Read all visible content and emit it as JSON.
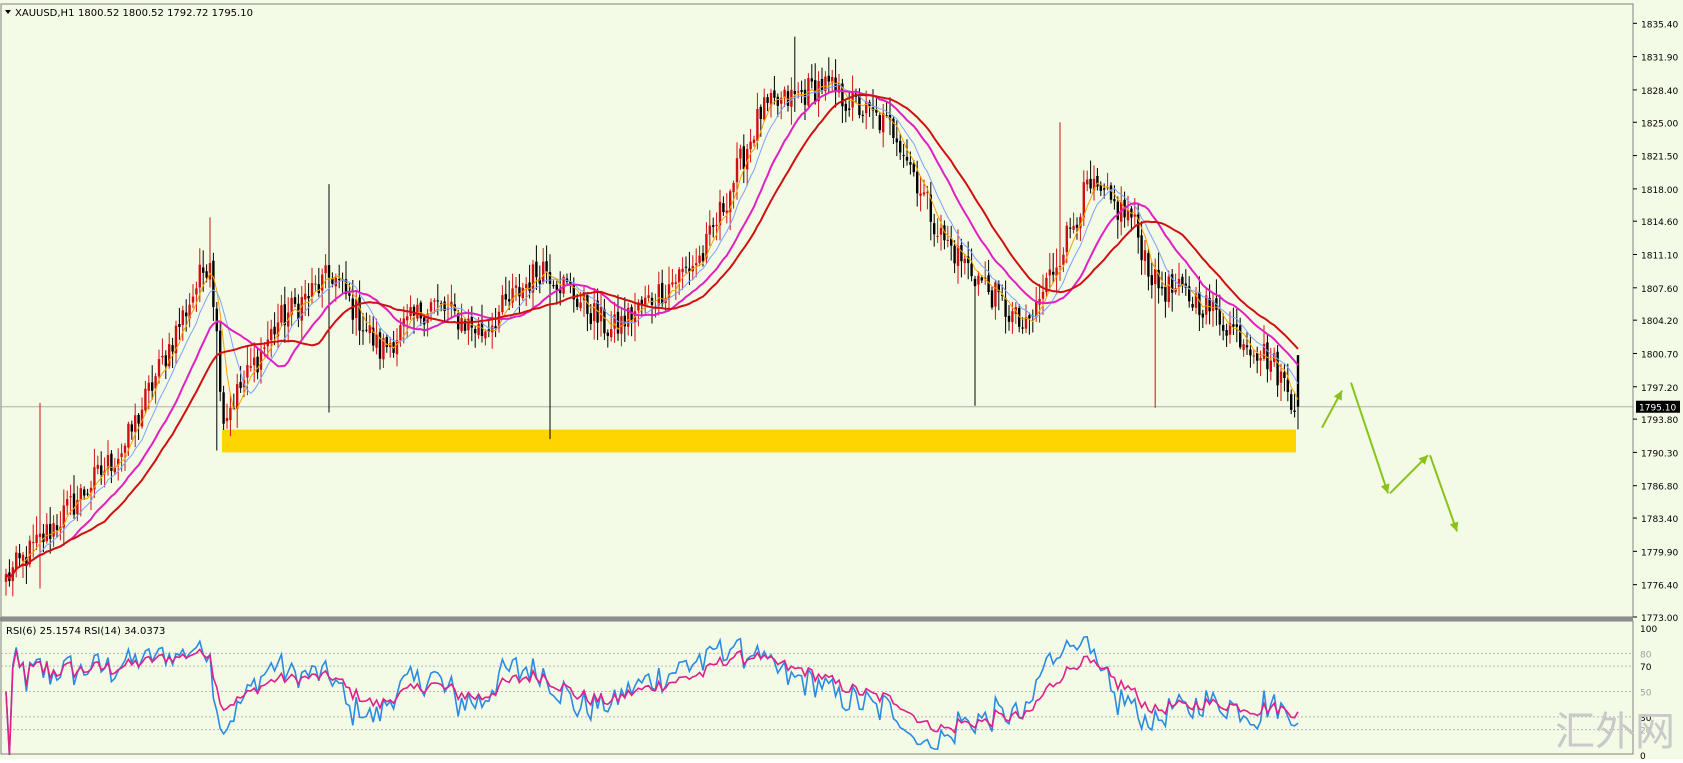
{
  "header": {
    "symbol": "XAUUSD,H1",
    "ohlc": "1800.52 1800.52 1792.72 1795.10"
  },
  "rsi_header": {
    "text": "RSI(6) 25.1574  RSI(14) 34.0373"
  },
  "watermark": "汇外网",
  "colors": {
    "background": "#f3fbe6",
    "bull_candle": "#d01010",
    "bear_candle": "#000000",
    "ma_fast": "#f4a000",
    "ma_mid": "#7fa0ff",
    "ma_magenta": "#e020c0",
    "ma_slow": "#d01010",
    "support_zone": "#ffd500",
    "arrows": "#8ac21a",
    "rsi6": "#2a8be0",
    "rsi14": "#e0208a"
  },
  "chart_data": [
    {
      "type": "candlestick",
      "symbol": "XAUUSD",
      "timeframe": "H1",
      "last_price_label": "1795.10",
      "current_price": 1795.1,
      "ylim": [
        1773.0,
        1836.8
      ],
      "y_ticks": [
        "1835.40",
        "1831.90",
        "1828.40",
        "1825.00",
        "1821.50",
        "1818.00",
        "1814.60",
        "1811.10",
        "1807.60",
        "1804.20",
        "1800.70",
        "1797.20",
        "1793.80",
        "1790.30",
        "1786.80",
        "1783.40",
        "1779.90",
        "1776.40",
        "1773.00"
      ],
      "support_zone": [
        1790.3,
        1792.7
      ],
      "projection_path": [
        1792.9,
        1797.0,
        1786.0,
        1790.0,
        1782.0
      ],
      "anchors": [
        {
          "x": 0,
          "close": 1777.0
        },
        {
          "x": 35,
          "close": 1791.0
        },
        {
          "x": 60,
          "close": 1811.0
        },
        {
          "x": 64,
          "close": 1794.0
        },
        {
          "x": 80,
          "close": 1804.0
        },
        {
          "x": 96,
          "close": 1809.0
        },
        {
          "x": 110,
          "close": 1801.0
        },
        {
          "x": 125,
          "close": 1806.0
        },
        {
          "x": 140,
          "close": 1803.0
        },
        {
          "x": 158,
          "close": 1810.0
        },
        {
          "x": 178,
          "close": 1803.0
        },
        {
          "x": 195,
          "close": 1808.0
        },
        {
          "x": 205,
          "close": 1811.0
        },
        {
          "x": 222,
          "close": 1826.0
        },
        {
          "x": 240,
          "close": 1829.0
        },
        {
          "x": 262,
          "close": 1824.0
        },
        {
          "x": 275,
          "close": 1813.0
        },
        {
          "x": 300,
          "close": 1803.0
        },
        {
          "x": 318,
          "close": 1818.0
        },
        {
          "x": 331,
          "close": 1815.0
        },
        {
          "x": 338,
          "close": 1808.0
        },
        {
          "x": 352,
          "close": 1806.0
        },
        {
          "x": 372,
          "close": 1800.0
        },
        {
          "x": 380,
          "close": 1795.1
        }
      ],
      "rsi": {
        "series": [
          {
            "name": "RSI(6)",
            "last": 25.1574
          },
          {
            "name": "RSI(14)",
            "last": 34.0373
          }
        ],
        "ylim": [
          0,
          100
        ],
        "levels": [
          80,
          70,
          50,
          30,
          20
        ],
        "left_ticks": [
          "100",
          "70",
          "30",
          "0"
        ],
        "level_labels": [
          "80",
          "50",
          "20"
        ]
      }
    }
  ]
}
